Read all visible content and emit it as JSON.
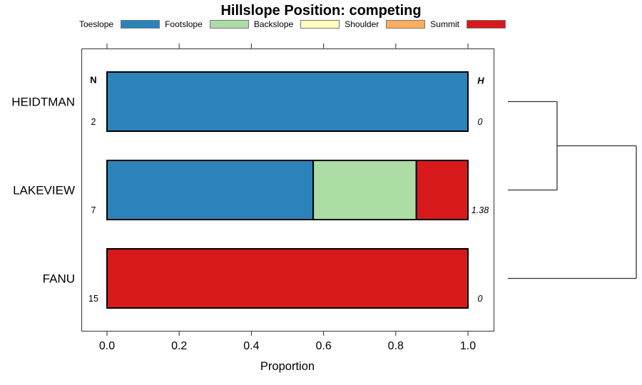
{
  "title": "Hillslope Position: competing",
  "chart_data": {
    "type": "bar",
    "orientation": "horizontal",
    "stacked": true,
    "title": "Hillslope Position: competing",
    "xlabel": "Proportion",
    "xlim": [
      0,
      1
    ],
    "x_tick_labels": [
      "0.0",
      "0.2",
      "0.4",
      "0.6",
      "0.8",
      "1.0"
    ],
    "grid": false,
    "legend_position": "top",
    "legend": [
      {
        "label": "Toeslope",
        "color": "#2B83BA"
      },
      {
        "label": "Footslope",
        "color": "#ABDDA4"
      },
      {
        "label": "Backslope",
        "color": "#FFFFBF"
      },
      {
        "label": "Shoulder",
        "color": "#FDAE61"
      },
      {
        "label": "Summit",
        "color": "#D7191C"
      }
    ],
    "annotation_columns": {
      "left_header": "N",
      "right_header": "H"
    },
    "rows": [
      {
        "label": "HEIDTMAN",
        "n": "2",
        "h": "0",
        "segments": [
          {
            "name": "Toeslope",
            "value": 1.0
          }
        ]
      },
      {
        "label": "LAKEVIEW",
        "n": "7",
        "h": "1.38",
        "segments": [
          {
            "name": "Toeslope",
            "value": 0.5714
          },
          {
            "name": "Footslope",
            "value": 0.2857
          },
          {
            "name": "Summit",
            "value": 0.1429
          }
        ]
      },
      {
        "label": "FANU",
        "n": "15",
        "h": "0",
        "segments": [
          {
            "name": "Summit",
            "value": 1.0
          }
        ]
      }
    ],
    "dendrogram": {
      "merges": [
        {
          "children": [
            0,
            1
          ],
          "height": 0.383
        },
        {
          "children": [
            "m0",
            2
          ],
          "height": 1.0
        }
      ]
    }
  }
}
